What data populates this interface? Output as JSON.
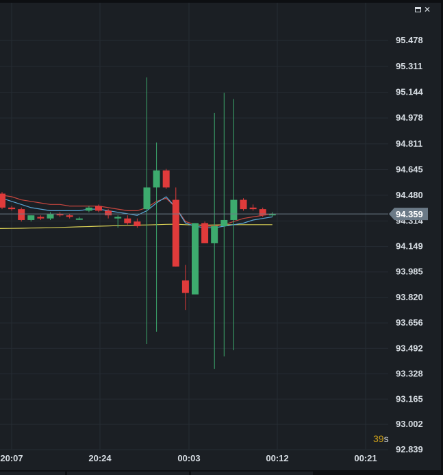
{
  "window": {
    "minimize_glyph": "▬",
    "close_glyph": "✕"
  },
  "countdown": {
    "value": "39",
    "unit": "s"
  },
  "colors": {
    "background": "#1b1f24",
    "grid": "#262c33",
    "up": "#3dab6e",
    "down": "#e03b3b",
    "ma_red": "#c9473f",
    "ma_blue": "#5aa7d6",
    "ma_yellow": "#d8cf55",
    "price_tag": "#6b7a87",
    "axis_text": "#d7dde3"
  },
  "chart_data": {
    "type": "candlestick",
    "x_ticks": [
      "20:07",
      "20:24",
      "00:03",
      "00:12",
      "00:21"
    ],
    "y_ticks": [
      "95.478",
      "95.311",
      "95.144",
      "94.978",
      "94.811",
      "94.645",
      "94.480",
      "94.314",
      "94.149",
      "93.985",
      "93.820",
      "93.656",
      "93.492",
      "93.328",
      "93.165",
      "93.002",
      "92.839"
    ],
    "ylim": [
      92.839,
      95.478
    ],
    "current_price": "94.359",
    "candles": [
      {
        "o": 94.49,
        "h": 94.5,
        "l": 94.39,
        "c": 94.4
      },
      {
        "o": 94.4,
        "h": 94.41,
        "l": 94.38,
        "c": 94.39
      },
      {
        "o": 94.39,
        "h": 94.4,
        "l": 94.31,
        "c": 94.32
      },
      {
        "o": 94.32,
        "h": 94.35,
        "l": 94.31,
        "c": 94.35
      },
      {
        "o": 94.34,
        "h": 94.35,
        "l": 94.32,
        "c": 94.33
      },
      {
        "o": 94.33,
        "h": 94.37,
        "l": 94.32,
        "c": 94.36
      },
      {
        "o": 94.36,
        "h": 94.37,
        "l": 94.34,
        "c": 94.35
      },
      {
        "o": 94.35,
        "h": 94.36,
        "l": 94.33,
        "c": 94.34
      },
      {
        "o": 94.33,
        "h": 94.34,
        "l": 94.32,
        "c": 94.33
      },
      {
        "o": 94.38,
        "h": 94.41,
        "l": 94.37,
        "c": 94.4
      },
      {
        "o": 94.41,
        "h": 94.42,
        "l": 94.37,
        "c": 94.38
      },
      {
        "o": 94.38,
        "h": 94.39,
        "l": 94.33,
        "c": 94.35
      },
      {
        "o": 94.33,
        "h": 94.35,
        "l": 94.27,
        "c": 94.34
      },
      {
        "o": 94.33,
        "h": 94.35,
        "l": 94.29,
        "c": 94.3
      },
      {
        "o": 94.31,
        "h": 94.33,
        "l": 94.27,
        "c": 94.28
      },
      {
        "o": 94.39,
        "h": 95.24,
        "l": 93.52,
        "c": 94.53
      },
      {
        "o": 94.53,
        "h": 94.82,
        "l": 93.6,
        "c": 94.64
      },
      {
        "o": 94.64,
        "h": 94.65,
        "l": 94.52,
        "c": 94.53
      },
      {
        "o": 94.45,
        "h": 94.53,
        "l": 94.02,
        "c": 94.02
      },
      {
        "o": 93.93,
        "h": 94.03,
        "l": 93.74,
        "c": 93.85
      },
      {
        "o": 93.84,
        "h": 94.3,
        "l": 93.84,
        "c": 94.3
      },
      {
        "o": 94.3,
        "h": 94.31,
        "l": 94.17,
        "c": 94.17
      },
      {
        "o": 94.17,
        "h": 95.01,
        "l": 93.36,
        "c": 94.28
      },
      {
        "o": 94.28,
        "h": 95.14,
        "l": 93.44,
        "c": 94.32
      },
      {
        "o": 94.32,
        "h": 95.1,
        "l": 93.48,
        "c": 94.45
      },
      {
        "o": 94.45,
        "h": 94.46,
        "l": 94.38,
        "c": 94.39
      },
      {
        "o": 94.4,
        "h": 94.42,
        "l": 94.38,
        "c": 94.39
      },
      {
        "o": 94.39,
        "h": 94.4,
        "l": 94.34,
        "c": 94.35
      },
      {
        "o": 94.35,
        "h": 94.37,
        "l": 94.34,
        "c": 94.36
      }
    ],
    "ma_red": [
      94.48,
      94.47,
      94.45,
      94.44,
      94.43,
      94.42,
      94.42,
      94.41,
      94.41,
      94.41,
      94.41,
      94.4,
      94.39,
      94.38,
      94.38,
      94.4,
      94.44,
      94.46,
      94.4,
      94.31,
      94.29,
      94.28,
      94.28,
      94.29,
      94.31,
      94.33,
      94.34,
      94.35,
      94.36
    ],
    "ma_blue": [
      94.46,
      94.44,
      94.42,
      94.4,
      94.39,
      94.38,
      94.38,
      94.38,
      94.38,
      94.39,
      94.39,
      94.38,
      94.37,
      94.36,
      94.35,
      94.38,
      94.43,
      94.47,
      94.4,
      94.3,
      94.28,
      94.27,
      94.27,
      94.28,
      94.29,
      94.3,
      94.32,
      94.33,
      94.34
    ],
    "ma_yellow": [
      94.265,
      94.266,
      94.267,
      94.268,
      94.269,
      94.27,
      94.272,
      94.274,
      94.276,
      94.278,
      94.28,
      94.282,
      94.284,
      94.286,
      94.287,
      94.288,
      94.29,
      94.292,
      94.293,
      94.29,
      94.287,
      94.287,
      94.288,
      94.289,
      94.29,
      94.29,
      94.29,
      94.29,
      94.29
    ]
  }
}
